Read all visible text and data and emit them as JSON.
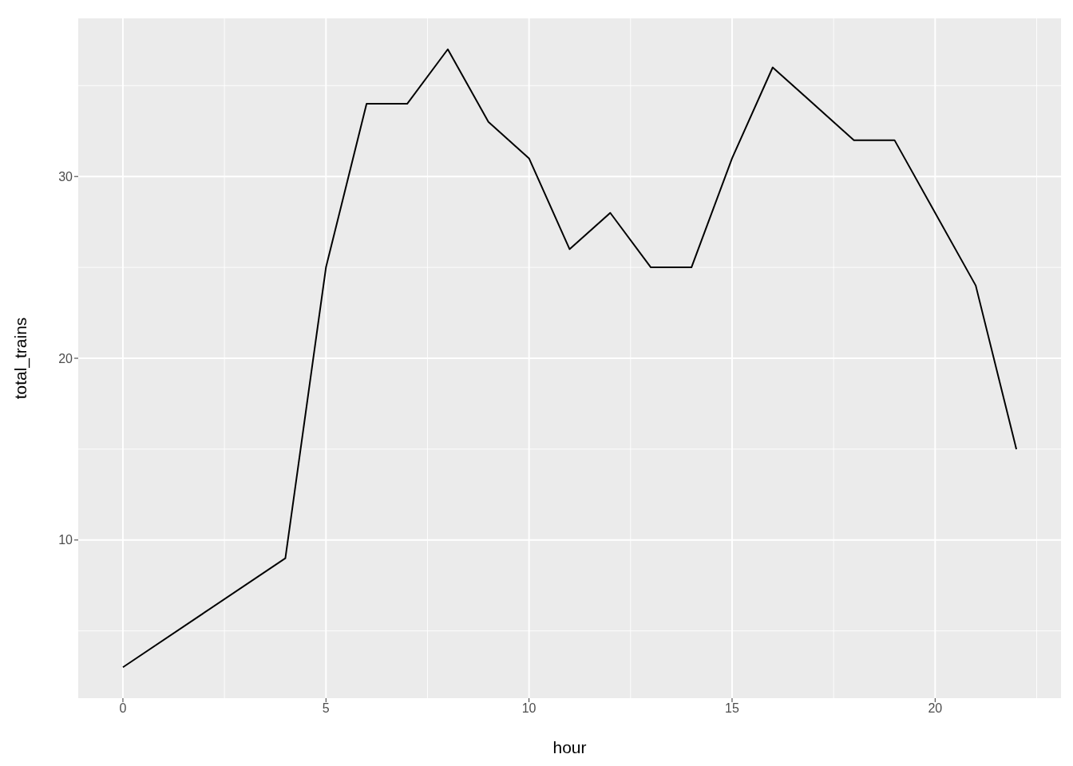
{
  "chart_data": {
    "type": "line",
    "xlabel": "hour",
    "ylabel": "total_trains",
    "x": [
      0,
      4,
      5,
      6,
      7,
      8,
      9,
      10,
      11,
      12,
      13,
      14,
      15,
      16,
      18,
      19,
      21,
      22
    ],
    "series": [
      {
        "color": "#000000",
        "values": [
          3,
          9,
          25,
          34,
          34,
          37,
          33,
          31,
          26,
          28,
          25,
          25,
          31,
          36,
          32,
          32,
          24,
          15
        ]
      }
    ],
    "xlim": [
      -1.1,
      23.1
    ],
    "xticks": [
      0,
      5,
      10,
      15,
      20
    ],
    "ylim": [
      1.3,
      38.7
    ],
    "yticks": [
      10,
      20,
      30
    ],
    "grid": true,
    "marker": "none",
    "line_style": "solid"
  }
}
